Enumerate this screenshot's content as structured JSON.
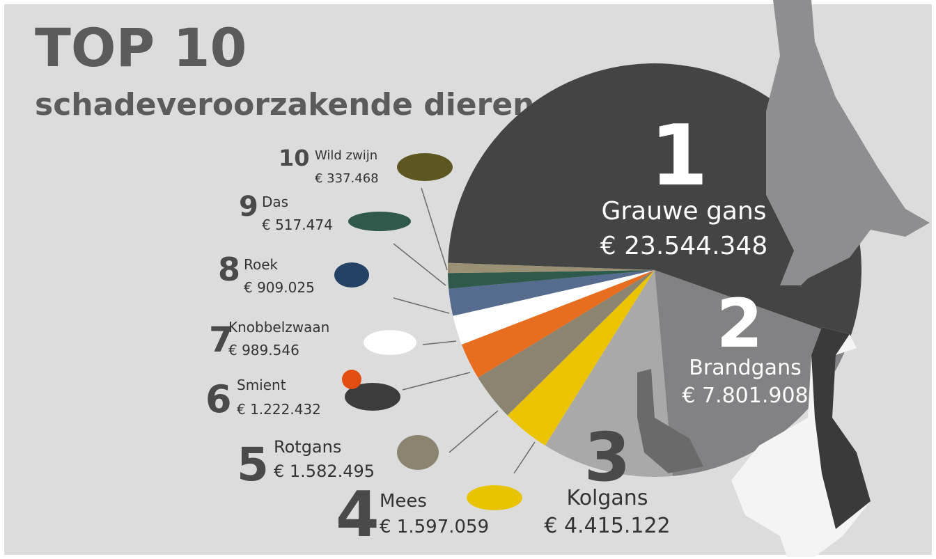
{
  "chart_data": {
    "type": "pie",
    "title": "TOP 10",
    "subtitle": "schadeveroorzakende dieren",
    "ranks": [
      1,
      2,
      3,
      4,
      5,
      6,
      7,
      8,
      9,
      10
    ],
    "categories": [
      "Grauwe gans",
      "Brandgans",
      "Kolgans",
      "Mees",
      "Rotgans",
      "Smient",
      "Knobbelzwaan",
      "Roek",
      "Das",
      "Wild zwijn"
    ],
    "values": [
      23544348,
      7801908,
      4415122,
      1597059,
      1582495,
      1222432,
      989546,
      909025,
      517474,
      337468
    ],
    "value_labels": [
      "€ 23.544.348",
      "€ 7.801.908",
      "€ 4.415.122",
      "€ 1.597.059",
      "€ 1.582.495",
      "€ 1.222.432",
      "€ 989.546",
      "€ 909.025",
      "€ 517.474",
      "€ 337.468"
    ],
    "colors": [
      "#444444",
      "#828284",
      "#a9a9aa",
      "#ecc300",
      "#8b8471",
      "#e86e1f",
      "#ffffff",
      "#566c8f",
      "#2f5a4b",
      "#9a9174"
    ]
  }
}
